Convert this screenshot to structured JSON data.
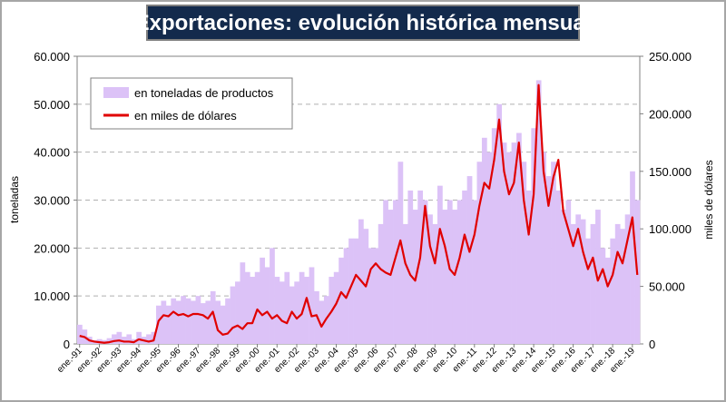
{
  "chart_data": {
    "type": "combo",
    "title": "Exportaciones: evolución histórica mensual",
    "y_label": "toneladas",
    "y2_label": "miles de dólares",
    "categories": [
      "ene.-91",
      null,
      null,
      null,
      "ene.-92",
      null,
      null,
      null,
      "ene.-93",
      null,
      null,
      null,
      "ene.-94",
      null,
      null,
      null,
      "ene.-95",
      null,
      null,
      null,
      "ene.-96",
      null,
      null,
      null,
      "ene.-97",
      null,
      null,
      null,
      "ene.-98",
      null,
      null,
      null,
      "ene.-99",
      null,
      null,
      null,
      "ene.-00",
      null,
      null,
      null,
      "ene.-01",
      null,
      null,
      null,
      "ene.-02",
      null,
      null,
      null,
      "ene.-03",
      null,
      null,
      null,
      "ene.-04",
      null,
      null,
      null,
      "ene.-05",
      null,
      null,
      null,
      "ene.-06",
      null,
      null,
      null,
      "ene.-07",
      null,
      null,
      null,
      "ene.-08",
      null,
      null,
      null,
      "ene.-09",
      null,
      null,
      null,
      "ene.-10",
      null,
      null,
      null,
      "ene.-11",
      null,
      null,
      null,
      "ene.-12",
      null,
      null,
      null,
      "ene.-13",
      null,
      null,
      null,
      "ene.-14",
      null,
      null,
      null,
      "ene.-15",
      null,
      null,
      null,
      "ene.-16",
      null,
      null,
      null,
      "ene.-17",
      null,
      null,
      null,
      "ene.-18",
      null,
      null,
      null,
      "ene.-19",
      null
    ],
    "series": [
      {
        "name": "en toneladas de productos",
        "type": "bar",
        "color": "#dcc2f7",
        "values": [
          4000,
          3000,
          1500,
          800,
          1000,
          800,
          1200,
          2000,
          2500,
          1500,
          2000,
          1000,
          2500,
          1500,
          2000,
          2500,
          8000,
          9000,
          8000,
          9500,
          9000,
          10000,
          9500,
          9000,
          10000,
          8500,
          9000,
          11000,
          9000,
          8000,
          9500,
          12000,
          13000,
          17000,
          15000,
          14000,
          15000,
          18000,
          16000,
          20000,
          14000,
          13000,
          15000,
          12000,
          13000,
          15000,
          14000,
          16000,
          11000,
          9000,
          10000,
          14000,
          15000,
          18000,
          20000,
          22000,
          22000,
          26000,
          24000,
          20000,
          20000,
          25000,
          30000,
          28000,
          30000,
          38000,
          25000,
          32000,
          28000,
          32000,
          30000,
          27000,
          25000,
          33000,
          28000,
          30000,
          28000,
          30000,
          32000,
          35000,
          30000,
          38000,
          43000,
          40000,
          45000,
          50000,
          42000,
          40000,
          42000,
          44000,
          38000,
          32000,
          45000,
          55000,
          40000,
          35000,
          38000,
          32000,
          28000,
          30000,
          25000,
          27000,
          26000,
          22000,
          25000,
          28000,
          20000,
          18000,
          22000,
          25000,
          24000,
          27000,
          36000,
          30000
        ]
      },
      {
        "name": "en miles de dólares",
        "type": "line",
        "axis": "y2",
        "color": "#e00000",
        "values": [
          7000,
          6000,
          3000,
          2000,
          1500,
          1000,
          1500,
          2500,
          3000,
          2000,
          2000,
          1500,
          4000,
          3000,
          2000,
          3000,
          20000,
          25000,
          24000,
          28000,
          25000,
          26000,
          24000,
          26000,
          26000,
          25000,
          22000,
          28000,
          12000,
          8000,
          9000,
          14000,
          16000,
          13000,
          18000,
          18000,
          30000,
          25000,
          28000,
          22000,
          25000,
          20000,
          18000,
          28000,
          22000,
          26000,
          40000,
          24000,
          25000,
          15000,
          22000,
          28000,
          35000,
          45000,
          40000,
          50000,
          60000,
          55000,
          50000,
          65000,
          70000,
          65000,
          62000,
          60000,
          75000,
          90000,
          70000,
          60000,
          55000,
          75000,
          120000,
          85000,
          70000,
          100000,
          85000,
          65000,
          60000,
          75000,
          95000,
          80000,
          95000,
          120000,
          140000,
          135000,
          160000,
          195000,
          150000,
          130000,
          140000,
          175000,
          125000,
          95000,
          130000,
          225000,
          150000,
          120000,
          145000,
          160000,
          115000,
          100000,
          85000,
          100000,
          80000,
          65000,
          75000,
          55000,
          65000,
          50000,
          60000,
          80000,
          70000,
          90000,
          110000,
          60000
        ]
      }
    ],
    "ylim": [
      0,
      60000
    ],
    "yticks": [
      {
        "value": 0,
        "label": "0"
      },
      {
        "value": 10000,
        "label": "10.000"
      },
      {
        "value": 20000,
        "label": "20.000"
      },
      {
        "value": 30000,
        "label": "30.000"
      },
      {
        "value": 40000,
        "label": "40.000"
      },
      {
        "value": 50000,
        "label": "50.000"
      },
      {
        "value": 60000,
        "label": "60.000"
      }
    ],
    "y2lim": [
      0,
      250000
    ],
    "y2ticks": [
      {
        "value": 0,
        "label": "0"
      },
      {
        "value": 50000,
        "label": "50.000"
      },
      {
        "value": 100000,
        "label": "100.000"
      },
      {
        "value": 150000,
        "label": "150.000"
      },
      {
        "value": 200000,
        "label": "200.000"
      },
      {
        "value": 250000,
        "label": "250.000"
      }
    ],
    "grid": true,
    "legend": "top-left"
  }
}
